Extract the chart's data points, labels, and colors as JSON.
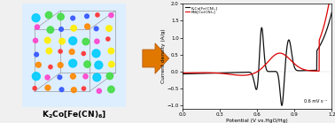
{
  "title_text": "$\\mathbf{K_2Co[Fe(CN)_6]}$",
  "legend_black": "K₂Co[Fe(CN)₆]",
  "legend_red": "KNi[Co(CN)₆]",
  "xlabel": "Potential (V vs.HgO/Hg)",
  "ylabel": "Current density (A/g)",
  "xlim": [
    0.0,
    1.2
  ],
  "ylim": [
    -1.1,
    2.0
  ],
  "xticks": [
    0.0,
    0.3,
    0.6,
    0.9,
    1.2
  ],
  "yticks": [
    -1.0,
    -0.5,
    0.0,
    0.5,
    1.0,
    1.5,
    2.0
  ],
  "annotation": "0.6 mV s⁻¹",
  "fig_bg": "#f0f0f0",
  "plot_bg": "#ffffff",
  "black_color": "#111111",
  "red_color": "#dd0000",
  "arrow_color": "#e07800"
}
